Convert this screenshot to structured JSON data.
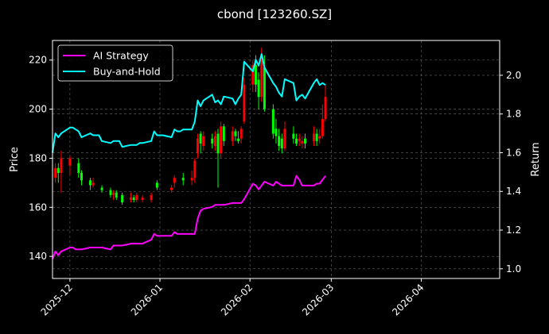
{
  "chart_data": {
    "type": "line",
    "title": "cbond [123260.SZ]",
    "xlabel": "",
    "ylabel_left": "Price",
    "ylabel_right": "Return",
    "grid": true,
    "legend_position": "upper-left",
    "x_start": "2025-11-25",
    "x_end": "2026-04-28",
    "x_ticks": [
      "2025-12",
      "2026-01",
      "2026-02",
      "2026-03",
      "2026-04"
    ],
    "ylim_price": [
      131,
      228
    ],
    "yticks_price": [
      140,
      160,
      180,
      200,
      220
    ],
    "ylim_return": [
      0.95,
      2.18
    ],
    "yticks_return": [
      "1.0",
      "1.2",
      "1.4",
      "1.6",
      "1.8",
      "2.0"
    ],
    "colors": {
      "ai": "#ff00ff",
      "bh": "#00ffff",
      "up": "#ff0000",
      "down": "#00ff00",
      "frame": "#ffffff",
      "grid": "#666666"
    },
    "series": [
      {
        "name": "AI Strategy",
        "axis": "right",
        "color": "#ff00ff",
        "points": [
          [
            "2025-11-25",
            1.05
          ],
          [
            "2025-11-26",
            1.09
          ],
          [
            "2025-11-27",
            1.07
          ],
          [
            "2025-11-28",
            1.09
          ],
          [
            "2025-12-01",
            1.11
          ],
          [
            "2025-12-02",
            1.11
          ],
          [
            "2025-12-03",
            1.1
          ],
          [
            "2025-12-04",
            1.1
          ],
          [
            "2025-12-05",
            1.1
          ],
          [
            "2025-12-08",
            1.11
          ],
          [
            "2025-12-09",
            1.11
          ],
          [
            "2025-12-10",
            1.11
          ],
          [
            "2025-12-11",
            1.11
          ],
          [
            "2025-12-12",
            1.11
          ],
          [
            "2025-12-15",
            1.1
          ],
          [
            "2025-12-16",
            1.12
          ],
          [
            "2025-12-17",
            1.12
          ],
          [
            "2025-12-18",
            1.12
          ],
          [
            "2025-12-19",
            1.12
          ],
          [
            "2025-12-22",
            1.13
          ],
          [
            "2025-12-23",
            1.13
          ],
          [
            "2025-12-24",
            1.13
          ],
          [
            "2025-12-25",
            1.13
          ],
          [
            "2025-12-26",
            1.13
          ],
          [
            "2025-12-29",
            1.15
          ],
          [
            "2025-12-30",
            1.18
          ],
          [
            "2025-12-31",
            1.17
          ],
          [
            "2026-01-02",
            1.17
          ],
          [
            "2026-01-05",
            1.17
          ],
          [
            "2026-01-06",
            1.19
          ],
          [
            "2026-01-07",
            1.18
          ],
          [
            "2026-01-08",
            1.18
          ],
          [
            "2026-01-09",
            1.18
          ],
          [
            "2026-01-12",
            1.18
          ],
          [
            "2026-01-13",
            1.18
          ],
          [
            "2026-01-14",
            1.26
          ],
          [
            "2026-01-15",
            1.3
          ],
          [
            "2026-01-16",
            1.31
          ],
          [
            "2026-01-19",
            1.32
          ],
          [
            "2026-01-20",
            1.33
          ],
          [
            "2026-01-21",
            1.33
          ],
          [
            "2026-01-22",
            1.33
          ],
          [
            "2026-01-23",
            1.33
          ],
          [
            "2026-01-26",
            1.34
          ],
          [
            "2026-01-27",
            1.34
          ],
          [
            "2026-01-28",
            1.34
          ],
          [
            "2026-01-29",
            1.34
          ],
          [
            "2026-01-30",
            1.36
          ],
          [
            "2026-02-02",
            1.44
          ],
          [
            "2026-02-03",
            1.43
          ],
          [
            "2026-02-04",
            1.41
          ],
          [
            "2026-02-05",
            1.43
          ],
          [
            "2026-02-06",
            1.45
          ],
          [
            "2026-02-09",
            1.43
          ],
          [
            "2026-02-10",
            1.45
          ],
          [
            "2026-02-11",
            1.44
          ],
          [
            "2026-02-12",
            1.43
          ],
          [
            "2026-02-13",
            1.43
          ],
          [
            "2026-02-16",
            1.43
          ],
          [
            "2026-02-17",
            1.48
          ],
          [
            "2026-02-18",
            1.46
          ],
          [
            "2026-02-19",
            1.43
          ],
          [
            "2026-02-20",
            1.43
          ],
          [
            "2026-02-23",
            1.43
          ],
          [
            "2026-02-24",
            1.44
          ],
          [
            "2026-02-25",
            1.44
          ],
          [
            "2026-02-26",
            1.46
          ],
          [
            "2026-02-27",
            1.48
          ]
        ]
      },
      {
        "name": "Buy-and-Hold",
        "axis": "right",
        "color": "#00ffff",
        "points": [
          [
            "2025-11-25",
            1.6
          ],
          [
            "2025-11-26",
            1.7
          ],
          [
            "2025-11-27",
            1.68
          ],
          [
            "2025-11-28",
            1.7
          ],
          [
            "2025-12-01",
            1.73
          ],
          [
            "2025-12-02",
            1.73
          ],
          [
            "2025-12-03",
            1.72
          ],
          [
            "2025-12-04",
            1.71
          ],
          [
            "2025-12-05",
            1.68
          ],
          [
            "2025-12-08",
            1.7
          ],
          [
            "2025-12-09",
            1.69
          ],
          [
            "2025-12-10",
            1.69
          ],
          [
            "2025-12-11",
            1.69
          ],
          [
            "2025-12-12",
            1.66
          ],
          [
            "2025-12-15",
            1.65
          ],
          [
            "2025-12-16",
            1.66
          ],
          [
            "2025-12-17",
            1.66
          ],
          [
            "2025-12-18",
            1.66
          ],
          [
            "2025-12-19",
            1.63
          ],
          [
            "2025-12-22",
            1.64
          ],
          [
            "2025-12-23",
            1.64
          ],
          [
            "2025-12-24",
            1.64
          ],
          [
            "2025-12-25",
            1.65
          ],
          [
            "2025-12-26",
            1.65
          ],
          [
            "2025-12-29",
            1.66
          ],
          [
            "2025-12-30",
            1.71
          ],
          [
            "2025-12-31",
            1.69
          ],
          [
            "2026-01-02",
            1.69
          ],
          [
            "2026-01-05",
            1.68
          ],
          [
            "2026-01-06",
            1.72
          ],
          [
            "2026-01-07",
            1.71
          ],
          [
            "2026-01-08",
            1.71
          ],
          [
            "2026-01-09",
            1.72
          ],
          [
            "2026-01-12",
            1.72
          ],
          [
            "2026-01-13",
            1.76
          ],
          [
            "2026-01-14",
            1.87
          ],
          [
            "2026-01-15",
            1.84
          ],
          [
            "2026-01-16",
            1.87
          ],
          [
            "2026-01-19",
            1.9
          ],
          [
            "2026-01-20",
            1.86
          ],
          [
            "2026-01-21",
            1.87
          ],
          [
            "2026-01-22",
            1.85
          ],
          [
            "2026-01-23",
            1.89
          ],
          [
            "2026-01-26",
            1.88
          ],
          [
            "2026-01-27",
            1.85
          ],
          [
            "2026-01-28",
            1.88
          ],
          [
            "2026-01-29",
            1.9
          ],
          [
            "2026-01-30",
            2.07
          ],
          [
            "2026-02-02",
            2.02
          ],
          [
            "2026-02-03",
            2.08
          ],
          [
            "2026-02-04",
            2.05
          ],
          [
            "2026-02-05",
            2.11
          ],
          [
            "2026-02-06",
            2.04
          ],
          [
            "2026-02-09",
            1.96
          ],
          [
            "2026-02-10",
            1.94
          ],
          [
            "2026-02-11",
            1.91
          ],
          [
            "2026-02-12",
            1.89
          ],
          [
            "2026-02-13",
            1.98
          ],
          [
            "2026-02-16",
            1.96
          ],
          [
            "2026-02-17",
            1.87
          ],
          [
            "2026-02-18",
            1.89
          ],
          [
            "2026-02-19",
            1.9
          ],
          [
            "2026-02-20",
            1.88
          ],
          [
            "2026-02-23",
            1.96
          ],
          [
            "2026-02-24",
            1.98
          ],
          [
            "2026-02-25",
            1.95
          ],
          [
            "2026-02-26",
            1.96
          ],
          [
            "2026-02-27",
            1.95
          ]
        ]
      }
    ],
    "candles": [
      [
        "2025-11-26",
        172,
        176,
        170,
        178
      ],
      [
        "2025-11-27",
        176,
        174,
        170,
        178
      ],
      [
        "2025-11-28",
        174,
        180,
        166,
        183
      ],
      [
        "2025-12-01",
        177,
        180,
        173,
        181
      ],
      [
        "2025-12-04",
        178,
        174,
        172,
        180
      ],
      [
        "2025-12-05",
        174,
        171,
        169,
        175
      ],
      [
        "2025-12-08",
        171,
        169,
        167,
        172
      ],
      [
        "2025-12-09",
        169,
        170,
        168,
        172
      ],
      [
        "2025-12-12",
        168,
        167,
        166,
        169
      ],
      [
        "2025-12-15",
        167,
        165,
        164,
        168
      ],
      [
        "2025-12-16",
        165,
        166,
        163,
        167
      ],
      [
        "2025-12-17",
        166,
        164,
        163,
        167
      ],
      [
        "2025-12-19",
        165,
        162,
        161,
        166
      ],
      [
        "2025-12-22",
        163,
        164,
        162,
        166
      ],
      [
        "2025-12-23",
        164,
        163,
        162,
        165
      ],
      [
        "2025-12-24",
        163,
        165,
        162,
        166
      ],
      [
        "2025-12-26",
        163,
        164,
        162,
        165
      ],
      [
        "2025-12-29",
        163,
        165,
        162,
        166
      ],
      [
        "2025-12-31",
        170,
        168,
        167,
        171
      ],
      [
        "2026-01-05",
        167,
        168,
        166,
        169
      ],
      [
        "2026-01-06",
        170,
        172,
        168,
        173
      ],
      [
        "2026-01-09",
        172,
        171,
        169,
        174
      ],
      [
        "2026-01-12",
        171,
        172,
        169,
        175
      ],
      [
        "2026-01-13",
        172,
        179,
        170,
        180
      ],
      [
        "2026-01-14",
        182,
        188,
        180,
        190
      ],
      [
        "2026-01-15",
        190,
        186,
        182,
        191
      ],
      [
        "2026-01-16",
        185,
        189,
        183,
        191
      ],
      [
        "2026-01-19",
        188,
        186,
        184,
        190
      ],
      [
        "2026-01-20",
        185,
        189,
        183,
        191
      ],
      [
        "2026-01-21",
        190,
        182,
        168,
        192
      ],
      [
        "2026-01-22",
        182,
        193,
        180,
        195
      ],
      [
        "2026-01-23",
        193,
        187,
        185,
        194
      ],
      [
        "2026-01-26",
        187,
        191,
        185,
        193
      ],
      [
        "2026-01-27",
        191,
        189,
        187,
        192
      ],
      [
        "2026-01-28",
        188,
        187,
        186,
        191
      ],
      [
        "2026-01-29",
        188,
        192,
        186,
        193
      ],
      [
        "2026-01-30",
        195,
        210,
        194,
        213
      ],
      [
        "2026-02-02",
        210,
        218,
        207,
        220
      ],
      [
        "2026-02-03",
        218,
        210,
        207,
        222
      ],
      [
        "2026-02-04",
        212,
        205,
        200,
        215
      ],
      [
        "2026-02-05",
        205,
        220,
        203,
        225
      ],
      [
        "2026-02-06",
        217,
        200,
        199,
        222
      ],
      [
        "2026-02-09",
        200,
        190,
        188,
        202
      ],
      [
        "2026-02-10",
        192,
        189,
        186,
        196
      ],
      [
        "2026-02-11",
        189,
        185,
        183,
        192
      ],
      [
        "2026-02-12",
        188,
        184,
        182,
        190
      ],
      [
        "2026-02-13",
        184,
        192,
        183,
        195
      ],
      [
        "2026-02-16",
        190,
        188,
        186,
        193
      ],
      [
        "2026-02-17",
        188,
        186,
        185,
        190
      ],
      [
        "2026-02-18",
        187,
        188,
        185,
        190
      ],
      [
        "2026-02-19",
        186,
        187,
        184,
        189
      ],
      [
        "2026-02-20",
        188,
        186,
        184,
        190
      ],
      [
        "2026-02-23",
        187,
        190,
        185,
        193
      ],
      [
        "2026-02-24",
        190,
        187,
        185,
        192
      ],
      [
        "2026-02-25",
        188,
        189,
        186,
        192
      ],
      [
        "2026-02-26",
        189,
        196,
        188,
        202
      ],
      [
        "2026-02-27",
        196,
        205,
        195,
        210
      ]
    ]
  }
}
